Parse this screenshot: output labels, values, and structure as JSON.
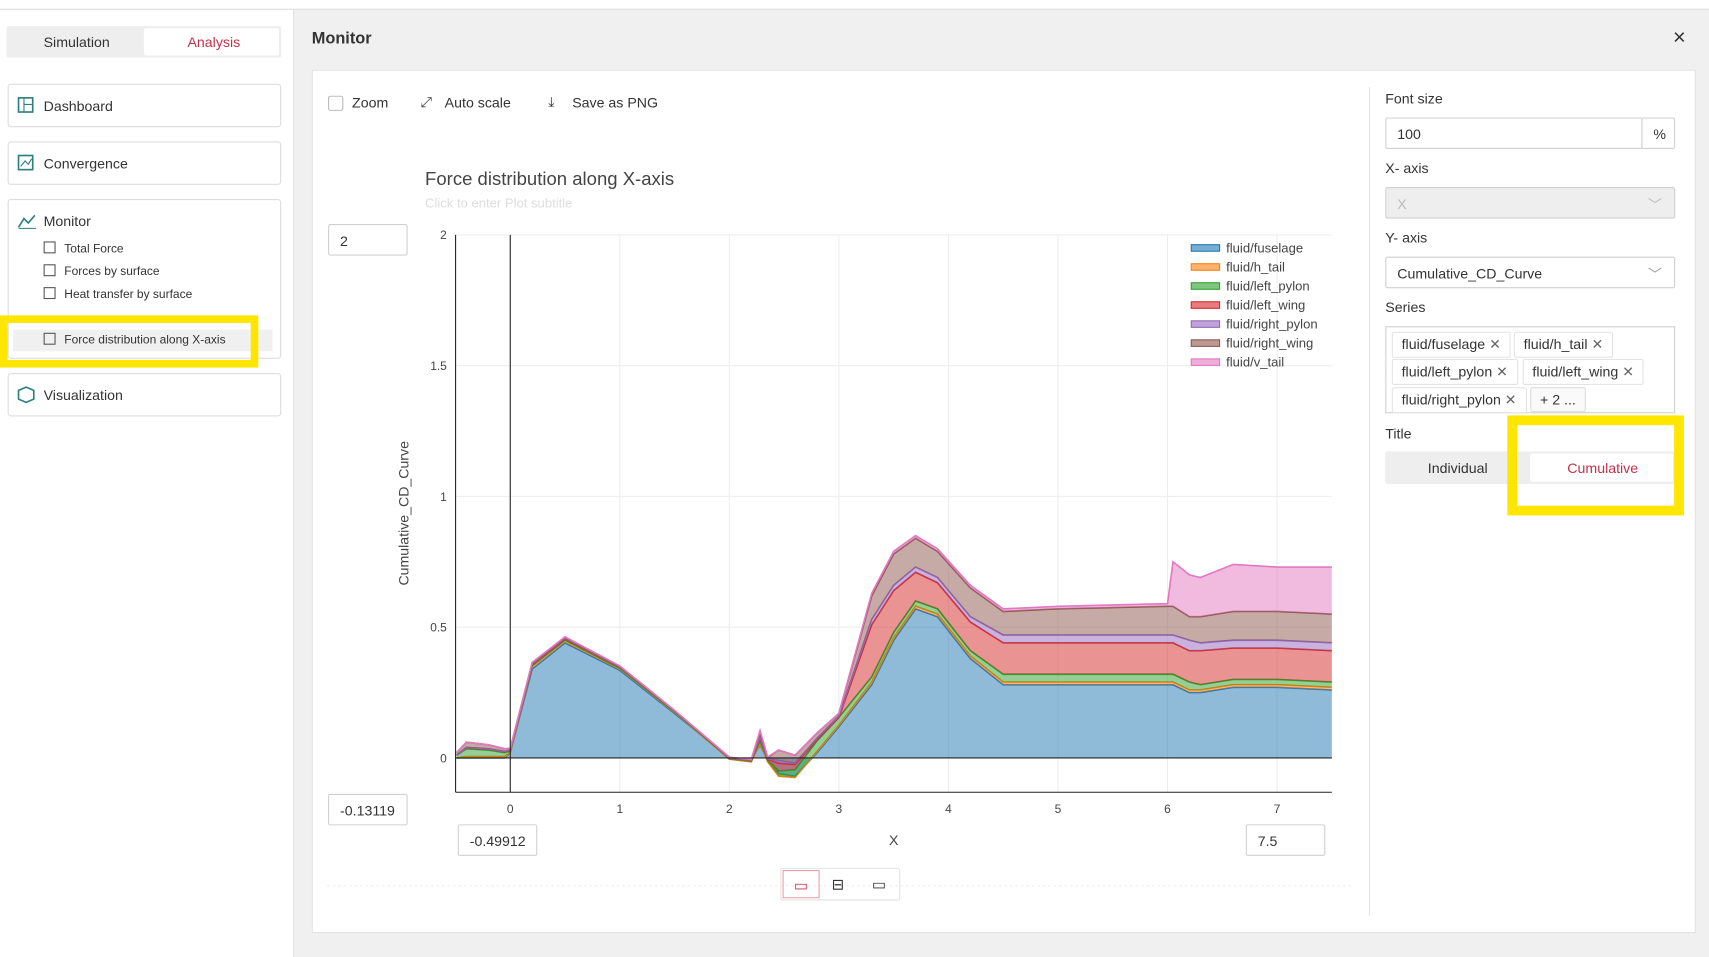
{
  "tabs": [
    "Simulation",
    "Analysis"
  ],
  "nav": {
    "dashboard": "Dashboard",
    "convergence": "Convergence",
    "monitor": "Monitor",
    "monitor_items": [
      "Total Force",
      "Forces by surface",
      "Heat transfer by surface",
      "Force distribution along X-axis"
    ],
    "visualization": "Visualization"
  },
  "panel": {
    "title": "Monitor",
    "toolbar": [
      "Zoom",
      "Auto scale",
      "Save as PNG"
    ]
  },
  "chart_data": {
    "type": "stacked-area",
    "title": "Force distribution along X-axis",
    "subtitle": "Click to enter Plot subtitle",
    "x_label": "X",
    "y_label": "Cumulative_CD_Curve",
    "x": [
      -0.49,
      -0.4,
      -0.2,
      -0.05,
      0,
      0.2,
      0.5,
      1,
      1.5,
      2,
      2.2,
      2.28,
      2.35,
      2.45,
      2.6,
      2.8,
      3,
      3.3,
      3.5,
      3.7,
      3.9,
      4.2,
      4.5,
      5,
      5.5,
      6,
      6.05,
      6.2,
      6.3,
      6.6,
      7,
      7.5
    ],
    "series": [
      {
        "name": "fluid/fuselage",
        "color": "#1f77b4",
        "values": [
          0,
          0,
          0,
          0,
          0.02,
          0.34,
          0.44,
          0.335,
          0.17,
          0,
          -0.01,
          0.05,
          -0.01,
          -0.06,
          -0.07,
          0.02,
          0.12,
          0.28,
          0.45,
          0.57,
          0.54,
          0.38,
          0.28,
          0.28,
          0.28,
          0.28,
          0.28,
          0.25,
          0.25,
          0.27,
          0.27,
          0.26
        ]
      },
      {
        "name": "fluid/h_tail",
        "color": "#ff7f0e",
        "values": [
          0,
          0.005,
          0.005,
          0.005,
          0.002,
          0.01,
          0.008,
          0.006,
          0.004,
          -0.005,
          -0.005,
          0.005,
          -0.005,
          -0.01,
          -0.005,
          0.005,
          0.005,
          0.01,
          0.01,
          0.01,
          0.01,
          0.01,
          0.01,
          0.01,
          0.01,
          0.01,
          0.01,
          0.01,
          0.01,
          0.01,
          0.01,
          0.01
        ]
      },
      {
        "name": "fluid/left_pylon",
        "color": "#2ca02c",
        "values": [
          0.01,
          0.03,
          0.025,
          0.015,
          0.005,
          0.003,
          0.003,
          0.002,
          0.002,
          0.002,
          0.003,
          0.01,
          0.005,
          0.02,
          0.03,
          0.04,
          0.03,
          0.02,
          0.02,
          0.02,
          0.02,
          0.02,
          0.03,
          0.03,
          0.03,
          0.03,
          0.03,
          0.03,
          0.02,
          0.02,
          0.02,
          0.02
        ]
      },
      {
        "name": "fluid/left_wing",
        "color": "#d62728",
        "values": [
          0,
          0.005,
          0.005,
          0.005,
          0.002,
          0.005,
          0.005,
          0.004,
          0.003,
          0.002,
          0.002,
          0.01,
          0.005,
          0.03,
          0.02,
          0.005,
          0,
          0.2,
          0.16,
          0.11,
          0.1,
          0.11,
          0.12,
          0.12,
          0.12,
          0.12,
          0.12,
          0.12,
          0.13,
          0.12,
          0.12,
          0.12
        ]
      },
      {
        "name": "fluid/right_pylon",
        "color": "#9467bd",
        "values": [
          0,
          0,
          0,
          0,
          0.002,
          0.002,
          0.002,
          0.001,
          0.001,
          0.001,
          0.001,
          0.005,
          0.002,
          0.01,
          0.005,
          0.005,
          0.005,
          0.02,
          0.02,
          0.02,
          0.02,
          0.02,
          0.03,
          0.03,
          0.03,
          0.03,
          0.03,
          0.04,
          0.03,
          0.03,
          0.03,
          0.03
        ]
      },
      {
        "name": "fluid/right_wing",
        "color": "#8c564b",
        "values": [
          0.01,
          0.02,
          0.015,
          0.01,
          0.005,
          0.003,
          0.003,
          0.002,
          0.001,
          0.002,
          0.002,
          0.02,
          0.005,
          0.04,
          0.03,
          0.02,
          0.01,
          0.09,
          0.12,
          0.11,
          0.1,
          0.11,
          0.09,
          0.1,
          0.105,
          0.11,
          0.11,
          0.09,
          0.1,
          0.11,
          0.11,
          0.11
        ]
      },
      {
        "name": "fluid/v_tail",
        "color": "#e377c2",
        "values": [
          0,
          0,
          0,
          0,
          0,
          0.002,
          0.002,
          0.002,
          0.001,
          0.001,
          0.001,
          0.005,
          0.002,
          0,
          0,
          0,
          0,
          0.01,
          0.01,
          0.01,
          0.01,
          0.01,
          0.01,
          0.01,
          0.01,
          0.01,
          0.17,
          0.16,
          0.15,
          0.18,
          0.17,
          0.18
        ]
      }
    ],
    "xlim": [
      -0.49912,
      7.5
    ],
    "ylim": [
      -0.13119,
      2
    ],
    "xticks": [
      0,
      1,
      2,
      3,
      4,
      5,
      6,
      7
    ],
    "yticks": [
      0,
      0.5,
      1,
      1.5,
      2
    ],
    "grid": true,
    "legend": "top-right"
  },
  "settings": {
    "font_size_label": "Font size",
    "font_size": "100",
    "font_unit": "%",
    "x_axis_label": "X- axis",
    "x_axis_value": "X",
    "y_axis_label": "Y- axis",
    "y_axis_value": "Cumulative_CD_Curve",
    "series_label": "Series",
    "series_more": "+ 2 ...",
    "title_label": "Title",
    "title_modes": [
      "Individual",
      "Cumulative"
    ]
  }
}
